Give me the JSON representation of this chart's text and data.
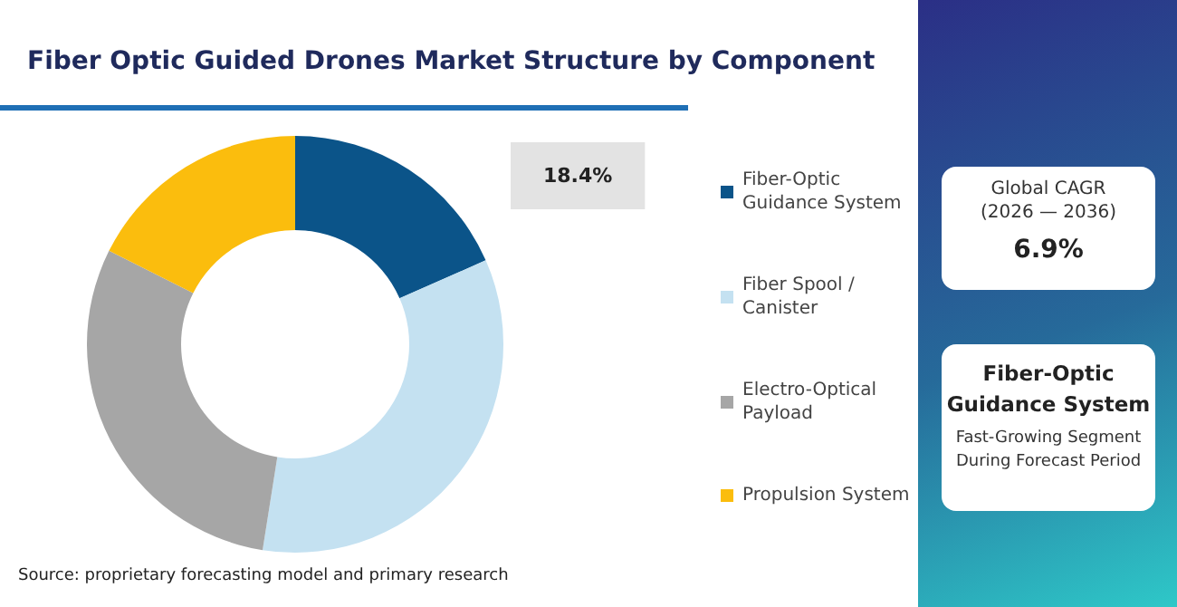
{
  "chart_data": {
    "type": "donut",
    "title": "Fiber Optic Guided Drones Market Structure by Component",
    "categories": [
      "Fiber-Optic Guidance System",
      "Fiber Spool / Canister",
      "Electro-Optical Payload",
      "Propulsion System"
    ],
    "values": [
      18.4,
      34.1,
      29.9,
      17.6
    ],
    "colors": [
      "#0b5489",
      "#c4e1f1",
      "#a6a6a6",
      "#fbbd0d"
    ],
    "value_labels": [
      "18.4%",
      null,
      null,
      null
    ],
    "legend": "right",
    "annotations": [
      "Source: proprietary forecasting model and primary research",
      "Global CAGR (2026 — 2036)",
      "6.9%",
      "Fiber-Optic Guidance System",
      "Fast-Growing Segment During Forecast Period"
    ]
  }
}
